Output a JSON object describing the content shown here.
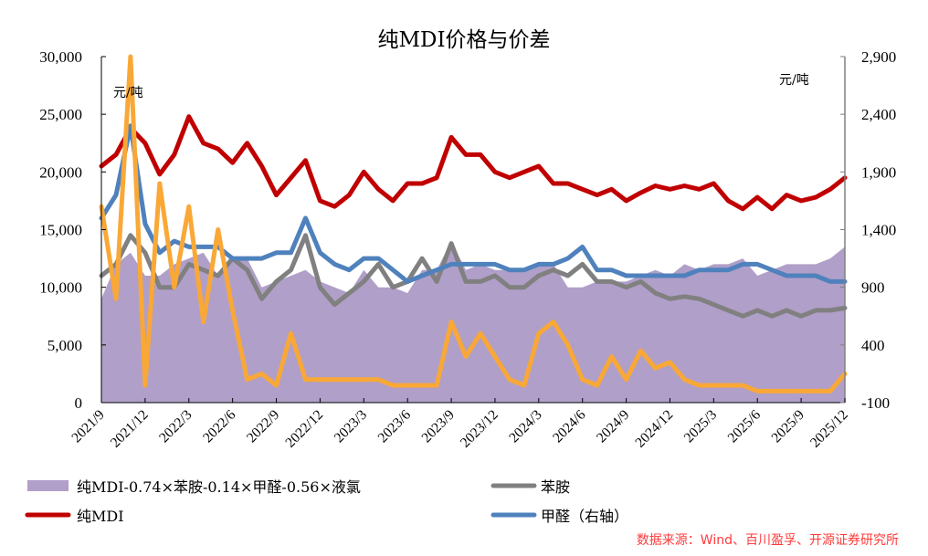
{
  "chart_data": {
    "type": "line",
    "title": "纯MDI价格与价差",
    "left_axis": {
      "unit_label": "元/吨",
      "ylim": [
        0,
        30000
      ],
      "ticks": [
        "0",
        "5,000",
        "10,000",
        "15,000",
        "20,000",
        "25,000",
        "30,000"
      ]
    },
    "right_axis": {
      "unit_label": "元/吨",
      "ylim": [
        -100,
        2900
      ],
      "ticks": [
        "-100",
        "400",
        "900",
        "1,400",
        "1,900",
        "2,400",
        "2,900"
      ]
    },
    "x_ticks": [
      "2021/9",
      "2021/12",
      "2022/3",
      "2022/6",
      "2022/9",
      "2022/12",
      "2023/3",
      "2023/6",
      "2023/9",
      "2023/12",
      "2024/3",
      "2024/6",
      "2024/9",
      "2024/12",
      "2025/3",
      "2025/6",
      "2025/9",
      "2025/12"
    ],
    "x_start": "2021/9",
    "x_end": "2025/12",
    "x_step": "monthly",
    "series": [
      {
        "name": "纯MDI-0.74×苯胺-0.14×甲醛-0.56×液氯",
        "type": "area",
        "axis": "left",
        "color": "#b09fc8",
        "values": [
          9000,
          12000,
          13000,
          11000,
          11000,
          12000,
          12500,
          13000,
          11000,
          12500,
          12500,
          10000,
          10500,
          11000,
          11500,
          10500,
          10000,
          9500,
          11500,
          10000,
          10000,
          9500,
          11500,
          11500,
          14000,
          11500,
          12000,
          11500,
          11500,
          11500,
          12000,
          12000,
          10000,
          10000,
          10500,
          10500,
          10500,
          11000,
          11500,
          11000,
          12000,
          11500,
          12000,
          12000,
          12500,
          11000,
          11500,
          12000,
          12000,
          12000,
          12500,
          13500
        ]
      },
      {
        "name": "苯胺",
        "type": "line",
        "axis": "left",
        "color": "#808080",
        "values": [
          11000,
          12000,
          14500,
          13000,
          10000,
          10000,
          12000,
          11500,
          11000,
          12500,
          11500,
          9000,
          10500,
          11500,
          14500,
          10000,
          8500,
          9500,
          10500,
          12000,
          10000,
          10500,
          12500,
          10500,
          13800,
          10500,
          10500,
          11000,
          10000,
          10000,
          11000,
          11500,
          11000,
          12000,
          10500,
          10500,
          10000,
          10500,
          9500,
          9000,
          9200,
          9000,
          8500,
          8000,
          7500,
          8000,
          7500,
          8000,
          7500,
          8000,
          8000,
          8200
        ]
      },
      {
        "name": "纯MDI",
        "type": "line",
        "axis": "left",
        "color": "#c00000",
        "values": [
          20500,
          21500,
          23800,
          22500,
          19800,
          21500,
          24800,
          22500,
          22000,
          20800,
          22500,
          20500,
          18000,
          19500,
          21000,
          17500,
          17000,
          18000,
          20000,
          18500,
          17500,
          19000,
          19000,
          19500,
          23000,
          21500,
          21500,
          20000,
          19500,
          20000,
          20500,
          19000,
          19000,
          18500,
          18000,
          18500,
          17500,
          18200,
          18800,
          18500,
          18800,
          18500,
          19000,
          17500,
          16800,
          17800,
          16800,
          18000,
          17500,
          17800,
          18500,
          19500
        ]
      },
      {
        "name": "甲醛（右轴）",
        "type": "line",
        "axis": "right",
        "color": "#4f81bd",
        "values": [
          1500,
          1700,
          2300,
          1450,
          1200,
          1300,
          1250,
          1250,
          1250,
          1150,
          1150,
          1150,
          1200,
          1200,
          1500,
          1200,
          1100,
          1050,
          1150,
          1150,
          1050,
          950,
          1000,
          1050,
          1100,
          1100,
          1100,
          1100,
          1050,
          1050,
          1100,
          1100,
          1150,
          1250,
          1050,
          1050,
          1000,
          1000,
          1000,
          1000,
          1000,
          1050,
          1050,
          1050,
          1100,
          1100,
          1050,
          1000,
          1000,
          1000,
          950,
          950
        ]
      },
      {
        "name": "",
        "type": "line",
        "axis": "right",
        "color": "#f9a837",
        "values": [
          1600,
          800,
          2900,
          50,
          1800,
          900,
          1600,
          600,
          1400,
          700,
          100,
          150,
          50,
          500,
          100,
          100,
          100,
          100,
          100,
          100,
          50,
          50,
          50,
          50,
          600,
          300,
          500,
          300,
          100,
          50,
          500,
          600,
          400,
          100,
          50,
          300,
          100,
          350,
          200,
          250,
          100,
          50,
          50,
          50,
          50,
          0,
          0,
          0,
          0,
          0,
          0,
          150
        ]
      }
    ]
  },
  "legend": {
    "items": [
      {
        "label": "纯MDI-0.74×苯胺-0.14×甲醛-0.56×液氯",
        "color": "#b09fc8"
      },
      {
        "label": "苯胺",
        "color": "#808080"
      },
      {
        "label": "纯MDI",
        "color": "#c00000"
      },
      {
        "label": "甲醛（右轴）",
        "color": "#4f81bd"
      }
    ]
  },
  "source": "数据来源：Wind、百川盈孚、开源证券研究所"
}
